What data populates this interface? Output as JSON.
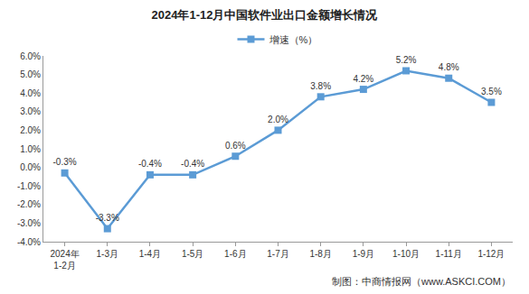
{
  "chart_data": {
    "type": "line",
    "title": "2024年1-12月中国软件业出口金额增长情况",
    "source": "制图：中商情报网（www.ASKCI.COM）",
    "categories": [
      "2024年\n1-2月",
      "1-3月",
      "1-4月",
      "1-5月",
      "1-6月",
      "1-7月",
      "1-8月",
      "1-9月",
      "1-10月",
      "1-11月",
      "1-12月"
    ],
    "series": [
      {
        "name": "增速（%）",
        "color": "#5b9bd5",
        "marker": "square",
        "values": [
          -0.3,
          -3.3,
          -0.4,
          -0.4,
          0.6,
          2.0,
          3.8,
          4.2,
          5.2,
          4.8,
          3.5
        ],
        "value_labels": [
          "-0.3%",
          "-3.3%",
          "-0.4%",
          "-0.4%",
          "0.6%",
          "2.0%",
          "3.8%",
          "4.2%",
          "5.2%",
          "4.8%",
          "3.5%"
        ]
      }
    ],
    "ylim": [
      -4,
      6
    ],
    "yticks": [
      {
        "value": -4,
        "label": "-4.0%"
      },
      {
        "value": -3,
        "label": "-3.0%"
      },
      {
        "value": -2,
        "label": "-2.0%"
      },
      {
        "value": -1,
        "label": "-1.0%"
      },
      {
        "value": 0,
        "label": "0.0%"
      },
      {
        "value": 1,
        "label": "1.0%"
      },
      {
        "value": 2,
        "label": "2.0%"
      },
      {
        "value": 3,
        "label": "3.0%"
      },
      {
        "value": 4,
        "label": "4.0%"
      },
      {
        "value": 5,
        "label": "5.0%"
      },
      {
        "value": 6,
        "label": "6.0%"
      }
    ],
    "grid": false,
    "legend": "top",
    "data_labels": true
  }
}
